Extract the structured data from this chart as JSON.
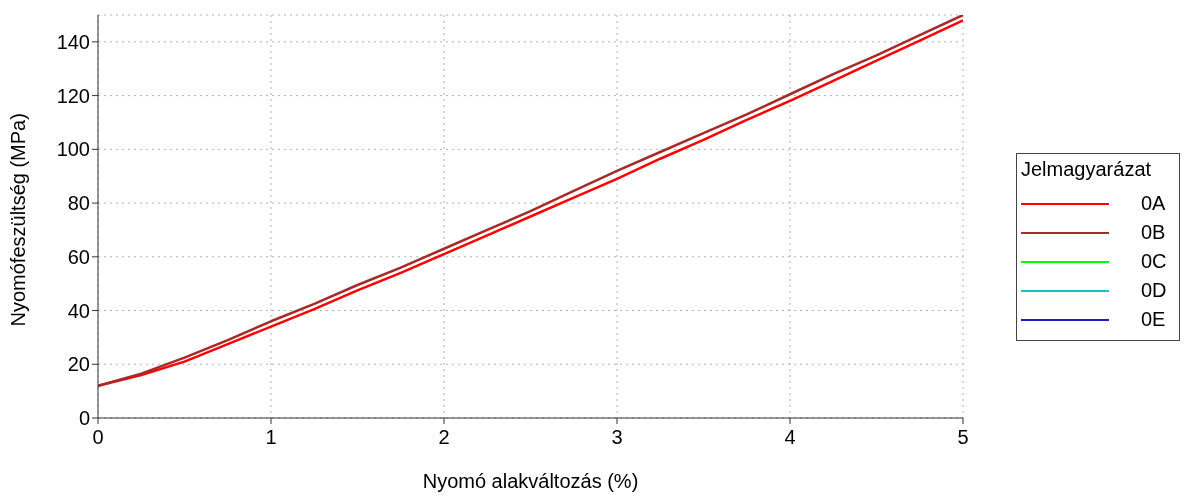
{
  "chart_data": {
    "type": "line",
    "xlabel": "Nyomó alakváltozás (%)",
    "ylabel": "Nyomófeszültség (MPa)",
    "legend_title": "Jelmagyarázat",
    "x": [
      0,
      0.25,
      0.5,
      0.75,
      1,
      1.25,
      1.5,
      1.75,
      2,
      2.25,
      2.5,
      2.75,
      3,
      3.25,
      3.5,
      3.75,
      4,
      4.25,
      4.5,
      4.75,
      5
    ],
    "series": [
      {
        "name": "0A",
        "color": "#ff0000",
        "values": [
          12,
          16,
          21,
          27.5,
          34,
          40.5,
          47.5,
          54,
          61,
          68,
          75,
          82,
          89,
          96.5,
          103.5,
          111,
          118,
          125.5,
          133,
          140.5,
          148
        ]
      },
      {
        "name": "0B",
        "color": "#a52a2a",
        "values": [
          12,
          16.5,
          22.5,
          29,
          36,
          42.5,
          49.5,
          56,
          63,
          70,
          77,
          84.5,
          92,
          99,
          106,
          113,
          120.5,
          128,
          135,
          142.5,
          150
        ]
      },
      {
        "name": "0C",
        "color": "#00ff00",
        "values": [
          null,
          null,
          null,
          null,
          null,
          null,
          null,
          null,
          null,
          null,
          null,
          null,
          null,
          null,
          null,
          null,
          null,
          null,
          null,
          null,
          null
        ]
      },
      {
        "name": "0D",
        "color": "#20c0c0",
        "values": [
          null,
          null,
          null,
          null,
          null,
          null,
          null,
          null,
          null,
          null,
          null,
          null,
          null,
          null,
          null,
          null,
          null,
          null,
          null,
          null,
          null
        ]
      },
      {
        "name": "0E",
        "color": "#2020c0",
        "values": [
          null,
          null,
          null,
          null,
          null,
          null,
          null,
          null,
          null,
          null,
          null,
          null,
          null,
          null,
          null,
          null,
          null,
          null,
          null,
          null,
          null
        ]
      }
    ],
    "xlim": [
      0,
      5
    ],
    "xticks": [
      0,
      1,
      2,
      3,
      4,
      5
    ],
    "ylim": [
      0,
      150
    ],
    "yticks": [
      0,
      20,
      40,
      60,
      80,
      100,
      120,
      140
    ],
    "grid": true,
    "legend": "right",
    "marker": "none",
    "line_style": "solid"
  }
}
